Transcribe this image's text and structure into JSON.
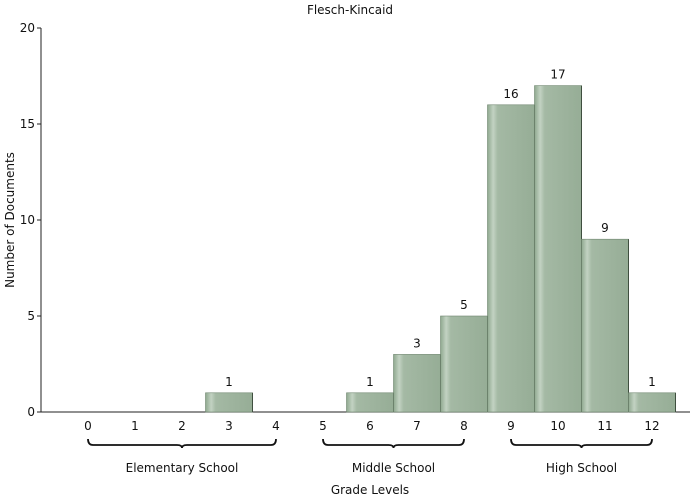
{
  "chart_data": {
    "type": "bar",
    "title": "Flesch-Kincaid",
    "xlabel": "Grade Levels",
    "ylabel": "Number of Documents",
    "x": [
      0,
      1,
      2,
      3,
      4,
      5,
      6,
      7,
      8,
      9,
      10,
      11,
      12
    ],
    "values": [
      0,
      0,
      0,
      1,
      0,
      0,
      1,
      3,
      5,
      16,
      17,
      9,
      1
    ],
    "ylim": [
      0,
      20
    ],
    "yticks": [
      0,
      5,
      10,
      15,
      20
    ],
    "xticks": [
      "0",
      "1",
      "2",
      "3",
      "4",
      "5",
      "6",
      "7",
      "8",
      "9",
      "10",
      "11",
      "12"
    ],
    "data_labels": [
      "",
      "",
      "",
      "1",
      "",
      "",
      "1",
      "3",
      "5",
      "16",
      "17",
      "9",
      "1"
    ],
    "groups": [
      {
        "label": "Elementary School",
        "from": 0,
        "to": 4
      },
      {
        "label": "Middle School",
        "from": 5,
        "to": 8
      },
      {
        "label": "High School",
        "from": 9,
        "to": 12
      }
    ],
    "grid": false,
    "bar_color": "#9fb59f"
  }
}
